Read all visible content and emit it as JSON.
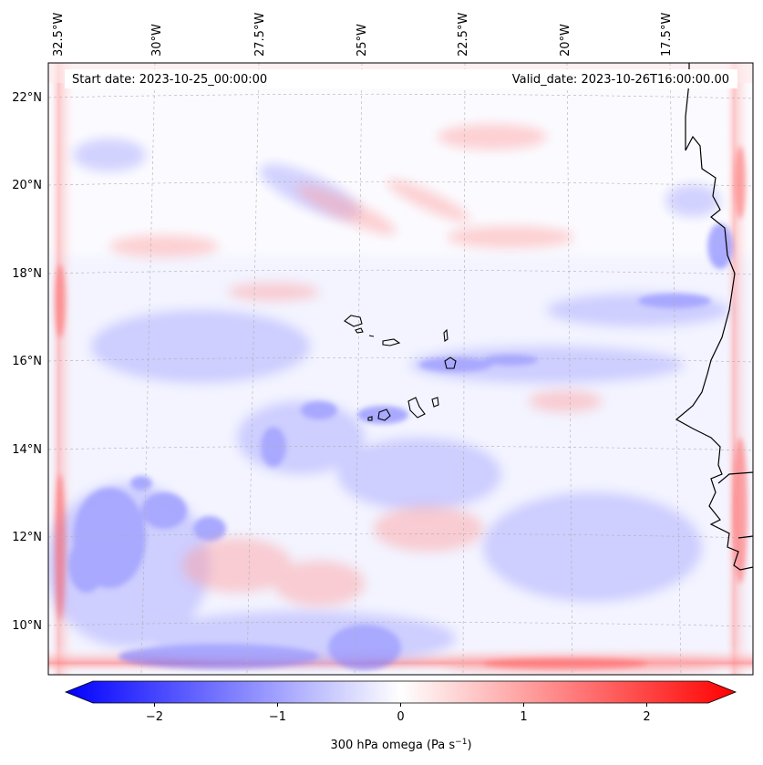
{
  "header": {
    "start_date": "Start date: 2023-10-25_00:00:00",
    "valid_date": "Valid_date: 2023-10-26T16:00:00.00"
  },
  "axes": {
    "lon_labels": [
      "32.5°W",
      "30°W",
      "27.5°W",
      "25°W",
      "22.5°W",
      "20°W",
      "17.5°W"
    ],
    "lat_labels": [
      "22°N",
      "20°N",
      "18°N",
      "16°N",
      "14°N",
      "12°N",
      "10°N"
    ]
  },
  "colorbar": {
    "label": "300 hPa omega (Pa s",
    "label_sup": "−1",
    "label_close": ")",
    "ticks": [
      "−2",
      "−1",
      "0",
      "1",
      "2"
    ],
    "min": -2.7,
    "max": 2.7,
    "neg_color": "#0000ff",
    "mid_color": "#ffffff",
    "pos_color": "#ff0000"
  },
  "colors": {
    "coastline": "#000000",
    "gridline": "#b0b0b0",
    "frame": "#000000"
  },
  "chart_data": {
    "type": "heatmap",
    "variable": "300 hPa omega",
    "units": "Pa s^-1",
    "lon_range": [
      -33,
      -15.5
    ],
    "lat_range": [
      9,
      22.5
    ],
    "colorbar_range": [
      -2.7,
      2.7
    ]
  }
}
